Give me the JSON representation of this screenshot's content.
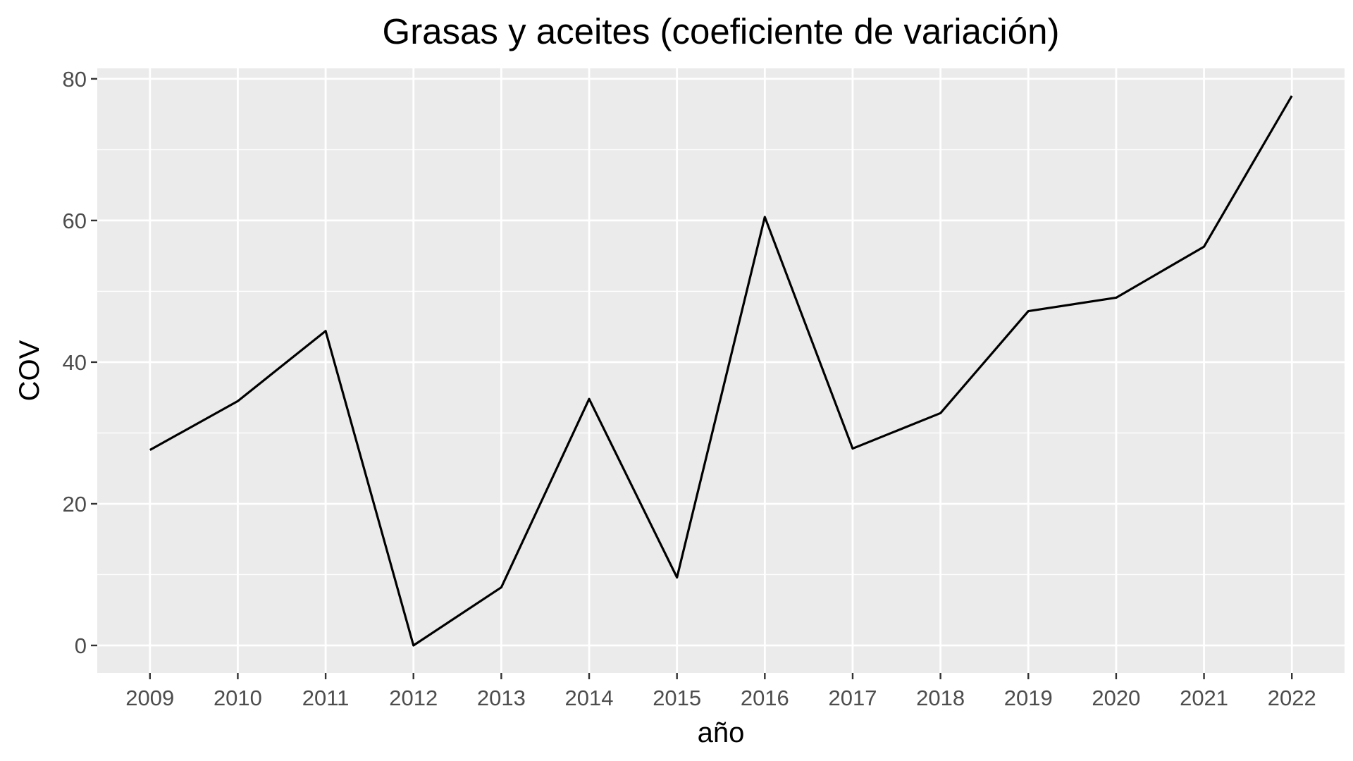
{
  "chart_data": {
    "type": "line",
    "title": "Grasas y aceites (coeficiente de variación)",
    "xlabel": "año",
    "ylabel": "COV",
    "x": [
      2009,
      2010,
      2011,
      2012,
      2013,
      2014,
      2015,
      2016,
      2017,
      2018,
      2019,
      2020,
      2021,
      2022
    ],
    "x_tick_labels": [
      "2009",
      "2010",
      "2011",
      "2012",
      "2013",
      "2014",
      "2015",
      "2016",
      "2017",
      "2018",
      "2019",
      "2020",
      "2021",
      "2022"
    ],
    "y_ticks": [
      0,
      20,
      40,
      60,
      80
    ],
    "y_tick_labels": [
      "0",
      "20",
      "40",
      "60",
      "80"
    ],
    "series": [
      {
        "values": [
          27.6,
          34.5,
          44.4,
          0.0,
          8.2,
          34.8,
          9.6,
          60.5,
          27.8,
          32.8,
          47.2,
          49.1,
          56.3,
          77.6
        ]
      }
    ],
    "ylim": [
      -3.88,
      81.48
    ],
    "xlim": [
      2008.4,
      2022.6
    ],
    "grid": true,
    "legend": "none",
    "colors": {
      "panel_background": "#ebebeb",
      "grid": "#ffffff",
      "line": "#000000",
      "tick_label": "#4d4d4d",
      "tick_mark": "#333333"
    }
  }
}
